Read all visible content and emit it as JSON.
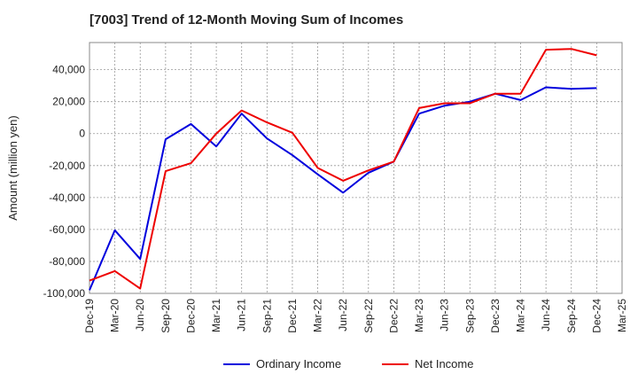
{
  "chart_data": {
    "type": "line",
    "title": "[7003]  Trend of 12-Month Moving Sum of Incomes",
    "xlabel": "",
    "ylabel": "Amount (million yen)",
    "ylim": [
      -100000,
      57000
    ],
    "yticks": [
      40000,
      20000,
      0,
      -20000,
      -40000,
      -60000,
      -80000,
      -100000
    ],
    "ytick_labels": [
      "40,000",
      "20,000",
      "0",
      "-20,000",
      "-40,000",
      "-60,000",
      "-80,000",
      "-100,000"
    ],
    "categories": [
      "Dec-19",
      "Mar-20",
      "Jun-20",
      "Sep-20",
      "Dec-20",
      "Mar-21",
      "Jun-21",
      "Sep-21",
      "Dec-21",
      "Mar-22",
      "Jun-22",
      "Sep-22",
      "Dec-22",
      "Mar-23",
      "Jun-23",
      "Sep-23",
      "Dec-23",
      "Mar-24",
      "Jun-24",
      "Sep-24",
      "Dec-24",
      "Mar-25"
    ],
    "grid": true,
    "legend_position": "bottom",
    "series": [
      {
        "name": "Ordinary Income",
        "color": "#0000dd",
        "values": [
          -98000,
          -60500,
          -78500,
          -3500,
          6000,
          -8000,
          12500,
          -3000,
          -13500,
          -25500,
          -37000,
          -24500,
          -17500,
          12500,
          17500,
          20000,
          25000,
          21000,
          29000,
          28000,
          28500,
          null
        ]
      },
      {
        "name": "Net Income",
        "color": "#ee0000",
        "values": [
          -92000,
          -86000,
          -97000,
          -23500,
          -18500,
          0,
          14500,
          7000,
          500,
          -21500,
          -29500,
          -23000,
          -17500,
          16000,
          19000,
          19000,
          25000,
          25000,
          52500,
          53000,
          49000,
          null
        ]
      }
    ]
  }
}
